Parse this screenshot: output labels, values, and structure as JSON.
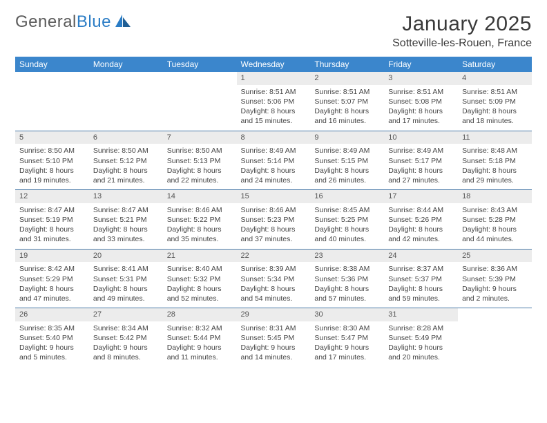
{
  "brand": {
    "name_gray": "General",
    "name_blue": "Blue"
  },
  "title": {
    "month": "January 2025",
    "location": "Sotteville-les-Rouen, France"
  },
  "colors": {
    "header_bg": "#3b86cc",
    "header_fg": "#ffffff",
    "daynum_bg": "#ececec",
    "rule": "#4a7aa9",
    "logo_gray": "#5b5b5b",
    "logo_blue": "#2a7cc5"
  },
  "day_headers": [
    "Sunday",
    "Monday",
    "Tuesday",
    "Wednesday",
    "Thursday",
    "Friday",
    "Saturday"
  ],
  "weeks": [
    {
      "nums": [
        "",
        "",
        "",
        "1",
        "2",
        "3",
        "4"
      ],
      "cells": [
        null,
        null,
        null,
        {
          "sunrise": "8:51 AM",
          "sunset": "5:06 PM",
          "daylight": "8 hours and 15 minutes."
        },
        {
          "sunrise": "8:51 AM",
          "sunset": "5:07 PM",
          "daylight": "8 hours and 16 minutes."
        },
        {
          "sunrise": "8:51 AM",
          "sunset": "5:08 PM",
          "daylight": "8 hours and 17 minutes."
        },
        {
          "sunrise": "8:51 AM",
          "sunset": "5:09 PM",
          "daylight": "8 hours and 18 minutes."
        }
      ]
    },
    {
      "nums": [
        "5",
        "6",
        "7",
        "8",
        "9",
        "10",
        "11"
      ],
      "cells": [
        {
          "sunrise": "8:50 AM",
          "sunset": "5:10 PM",
          "daylight": "8 hours and 19 minutes."
        },
        {
          "sunrise": "8:50 AM",
          "sunset": "5:12 PM",
          "daylight": "8 hours and 21 minutes."
        },
        {
          "sunrise": "8:50 AM",
          "sunset": "5:13 PM",
          "daylight": "8 hours and 22 minutes."
        },
        {
          "sunrise": "8:49 AM",
          "sunset": "5:14 PM",
          "daylight": "8 hours and 24 minutes."
        },
        {
          "sunrise": "8:49 AM",
          "sunset": "5:15 PM",
          "daylight": "8 hours and 26 minutes."
        },
        {
          "sunrise": "8:49 AM",
          "sunset": "5:17 PM",
          "daylight": "8 hours and 27 minutes."
        },
        {
          "sunrise": "8:48 AM",
          "sunset": "5:18 PM",
          "daylight": "8 hours and 29 minutes."
        }
      ]
    },
    {
      "nums": [
        "12",
        "13",
        "14",
        "15",
        "16",
        "17",
        "18"
      ],
      "cells": [
        {
          "sunrise": "8:47 AM",
          "sunset": "5:19 PM",
          "daylight": "8 hours and 31 minutes."
        },
        {
          "sunrise": "8:47 AM",
          "sunset": "5:21 PM",
          "daylight": "8 hours and 33 minutes."
        },
        {
          "sunrise": "8:46 AM",
          "sunset": "5:22 PM",
          "daylight": "8 hours and 35 minutes."
        },
        {
          "sunrise": "8:46 AM",
          "sunset": "5:23 PM",
          "daylight": "8 hours and 37 minutes."
        },
        {
          "sunrise": "8:45 AM",
          "sunset": "5:25 PM",
          "daylight": "8 hours and 40 minutes."
        },
        {
          "sunrise": "8:44 AM",
          "sunset": "5:26 PM",
          "daylight": "8 hours and 42 minutes."
        },
        {
          "sunrise": "8:43 AM",
          "sunset": "5:28 PM",
          "daylight": "8 hours and 44 minutes."
        }
      ]
    },
    {
      "nums": [
        "19",
        "20",
        "21",
        "22",
        "23",
        "24",
        "25"
      ],
      "cells": [
        {
          "sunrise": "8:42 AM",
          "sunset": "5:29 PM",
          "daylight": "8 hours and 47 minutes."
        },
        {
          "sunrise": "8:41 AM",
          "sunset": "5:31 PM",
          "daylight": "8 hours and 49 minutes."
        },
        {
          "sunrise": "8:40 AM",
          "sunset": "5:32 PM",
          "daylight": "8 hours and 52 minutes."
        },
        {
          "sunrise": "8:39 AM",
          "sunset": "5:34 PM",
          "daylight": "8 hours and 54 minutes."
        },
        {
          "sunrise": "8:38 AM",
          "sunset": "5:36 PM",
          "daylight": "8 hours and 57 minutes."
        },
        {
          "sunrise": "8:37 AM",
          "sunset": "5:37 PM",
          "daylight": "8 hours and 59 minutes."
        },
        {
          "sunrise": "8:36 AM",
          "sunset": "5:39 PM",
          "daylight": "9 hours and 2 minutes."
        }
      ]
    },
    {
      "nums": [
        "26",
        "27",
        "28",
        "29",
        "30",
        "31",
        ""
      ],
      "cells": [
        {
          "sunrise": "8:35 AM",
          "sunset": "5:40 PM",
          "daylight": "9 hours and 5 minutes."
        },
        {
          "sunrise": "8:34 AM",
          "sunset": "5:42 PM",
          "daylight": "9 hours and 8 minutes."
        },
        {
          "sunrise": "8:32 AM",
          "sunset": "5:44 PM",
          "daylight": "9 hours and 11 minutes."
        },
        {
          "sunrise": "8:31 AM",
          "sunset": "5:45 PM",
          "daylight": "9 hours and 14 minutes."
        },
        {
          "sunrise": "8:30 AM",
          "sunset": "5:47 PM",
          "daylight": "9 hours and 17 minutes."
        },
        {
          "sunrise": "8:28 AM",
          "sunset": "5:49 PM",
          "daylight": "9 hours and 20 minutes."
        },
        null
      ]
    }
  ],
  "labels": {
    "sunrise": "Sunrise:",
    "sunset": "Sunset:",
    "daylight": "Daylight:"
  }
}
